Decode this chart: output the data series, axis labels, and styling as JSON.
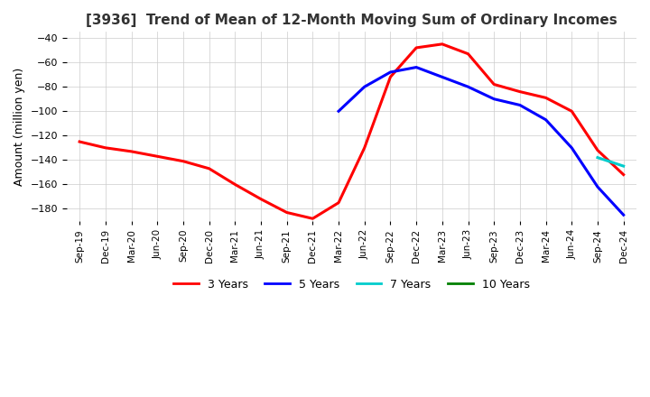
{
  "title": "[3936]  Trend of Mean of 12-Month Moving Sum of Ordinary Incomes",
  "ylabel": "Amount (million yen)",
  "ylim": [
    -190,
    -35
  ],
  "yticks": [
    -180,
    -160,
    -140,
    -120,
    -100,
    -80,
    -60,
    -40
  ],
  "background_color": "#ffffff",
  "grid_color": "#cccccc",
  "legend_labels": [
    "3 Years",
    "5 Years",
    "7 Years",
    "10 Years"
  ],
  "legend_colors": [
    "#ff0000",
    "#0000ff",
    "#00cccc",
    "#008000"
  ],
  "x_labels": [
    "Sep-19",
    "Dec-19",
    "Mar-20",
    "Jun-20",
    "Sep-20",
    "Dec-20",
    "Mar-21",
    "Jun-21",
    "Sep-21",
    "Dec-21",
    "Mar-22",
    "Jun-22",
    "Sep-22",
    "Dec-22",
    "Mar-23",
    "Jun-23",
    "Sep-23",
    "Dec-23",
    "Mar-24",
    "Jun-24",
    "Sep-24",
    "Dec-24"
  ],
  "series_3y": [
    -125,
    -130,
    -133,
    -137,
    -141,
    -147,
    -160,
    -172,
    -183,
    -188,
    -175,
    -130,
    -72,
    -48,
    -45,
    -53,
    -78,
    -84,
    -89,
    -100,
    -132,
    -152
  ],
  "series_5y": [
    null,
    null,
    null,
    null,
    null,
    null,
    null,
    null,
    null,
    null,
    -100,
    -80,
    -68,
    -64,
    -72,
    -80,
    -90,
    -95,
    -107,
    -130,
    -162,
    -185
  ],
  "series_7y": [
    null,
    null,
    null,
    null,
    null,
    null,
    null,
    null,
    null,
    null,
    null,
    null,
    null,
    null,
    null,
    null,
    null,
    null,
    null,
    null,
    -138,
    -145
  ],
  "series_10y": [
    null,
    null,
    null,
    null,
    null,
    null,
    null,
    null,
    null,
    null,
    null,
    null,
    null,
    null,
    null,
    null,
    null,
    null,
    null,
    null,
    null,
    null
  ]
}
